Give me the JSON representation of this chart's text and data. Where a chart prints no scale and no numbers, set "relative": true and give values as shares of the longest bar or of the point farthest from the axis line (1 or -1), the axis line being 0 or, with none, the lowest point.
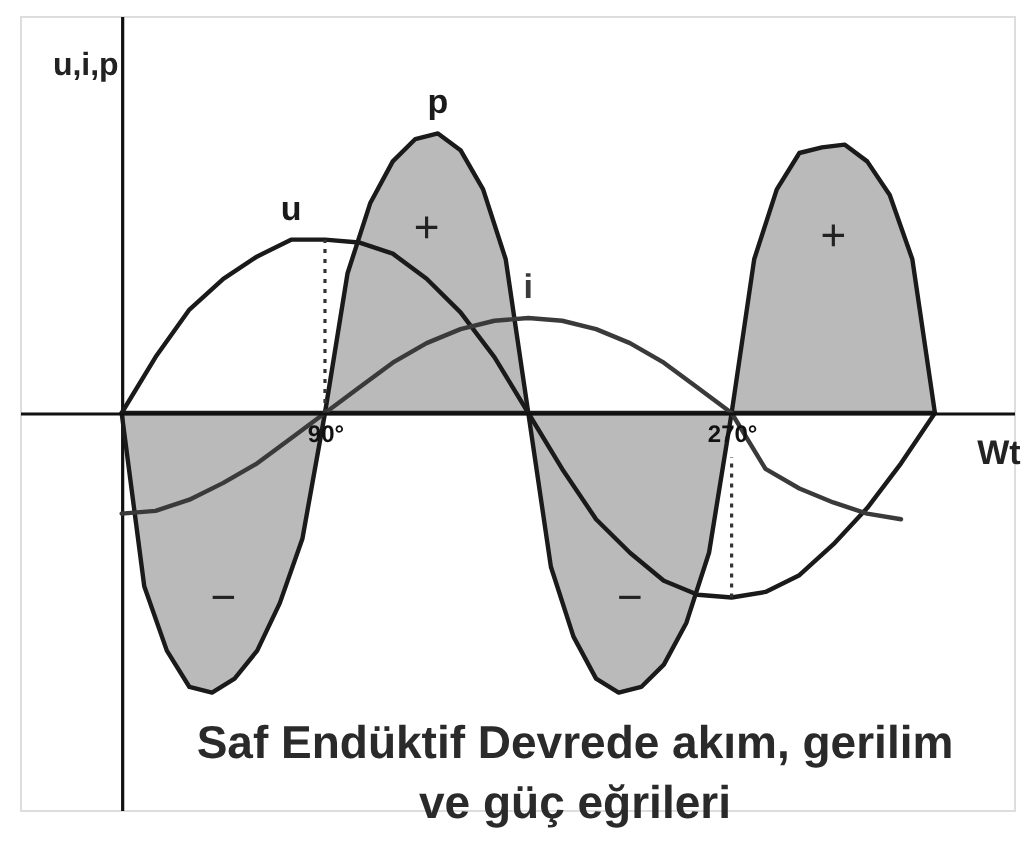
{
  "chart_data": {
    "type": "line",
    "relative": true,
    "xlabel": "Wt",
    "ylabel": "u,i,p",
    "xlim": [
      -45,
      395
    ],
    "xticks": [
      {
        "value": 90,
        "label": "90°"
      },
      {
        "value": 270,
        "label": "270°"
      }
    ],
    "ref_lines": [
      {
        "axis": "x",
        "value": 90,
        "color": "#333333",
        "line_style": "dotted"
      },
      {
        "axis": "x",
        "value": 270,
        "color": "#333333",
        "line_style": "dotted"
      }
    ],
    "annotations": [
      "Saf Endüktif Devrede akım, gerilim ve güç eğrileri",
      "−",
      "+",
      "−",
      "+"
    ],
    "series": [
      {
        "name": "p",
        "type": "area",
        "color": "#1a1a1a",
        "x": [
          0,
          10,
          20,
          30,
          40,
          50,
          60,
          70,
          80,
          90,
          100,
          110,
          120,
          130,
          140,
          150,
          160,
          170,
          180,
          190,
          200,
          210,
          220,
          230,
          240,
          250,
          260,
          270,
          280,
          290,
          300,
          310,
          320,
          330,
          340,
          350,
          360
        ],
        "values": [
          0,
          -0.62,
          -0.85,
          -0.98,
          -1.0,
          -0.95,
          -0.85,
          -0.68,
          -0.45,
          0,
          0.5,
          0.75,
          0.9,
          0.98,
          1.0,
          0.94,
          0.8,
          0.55,
          0,
          -0.55,
          -0.8,
          -0.95,
          -1.0,
          -0.98,
          -0.9,
          -0.75,
          -0.5,
          0,
          0.55,
          0.8,
          0.93,
          0.95,
          0.96,
          0.9,
          0.78,
          0.55,
          0
        ]
      },
      {
        "name": "u",
        "color": "#1a1a1a",
        "x": [
          0,
          15,
          30,
          45,
          60,
          75,
          90,
          105,
          120,
          135,
          150,
          165,
          180,
          195,
          210,
          225,
          240,
          255,
          270,
          285,
          300,
          315,
          330,
          345,
          360
        ],
        "values": [
          0,
          0.2,
          0.37,
          0.48,
          0.56,
          0.62,
          0.62,
          0.61,
          0.57,
          0.48,
          0.36,
          0.2,
          0,
          -0.2,
          -0.38,
          -0.5,
          -0.6,
          -0.65,
          -0.66,
          -0.64,
          -0.58,
          -0.47,
          -0.34,
          -0.18,
          0
        ]
      },
      {
        "name": "i",
        "color": "#3a3a3a",
        "x": [
          0,
          15,
          30,
          45,
          60,
          75,
          90,
          105,
          120,
          135,
          150,
          165,
          180,
          195,
          210,
          225,
          240,
          255,
          270,
          285,
          300,
          315,
          330,
          345
        ],
        "values": [
          -0.36,
          -0.35,
          -0.31,
          -0.25,
          -0.18,
          -0.09,
          0,
          0.09,
          0.18,
          0.25,
          0.3,
          0.33,
          0.34,
          0.33,
          0.3,
          0.25,
          0.18,
          0.09,
          0,
          -0.2,
          -0.27,
          -0.32,
          -0.36,
          -0.38
        ]
      }
    ]
  }
}
